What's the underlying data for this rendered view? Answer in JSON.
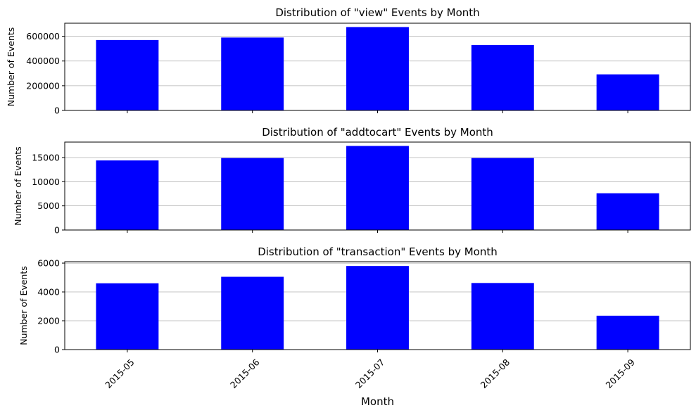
{
  "chart_data": [
    {
      "type": "bar",
      "title": "Distribution of \"view\" Events by Month",
      "ylabel": "Number of Events",
      "xlabel": "",
      "categories": [
        "2015-05",
        "2015-06",
        "2015-07",
        "2015-08",
        "2015-09"
      ],
      "values": [
        570000,
        590000,
        675000,
        530000,
        292000
      ],
      "ylim": [
        0,
        706000
      ],
      "yticks": [
        0,
        200000,
        400000,
        600000
      ],
      "grid": "y",
      "bar_color": "#0000ff",
      "show_xtick_labels": false
    },
    {
      "type": "bar",
      "title": "Distribution of \"addtocart\" Events by Month",
      "ylabel": "Number of Events",
      "xlabel": "",
      "categories": [
        "2015-05",
        "2015-06",
        "2015-07",
        "2015-08",
        "2015-09"
      ],
      "values": [
        14400,
        14900,
        17400,
        14900,
        7600
      ],
      "ylim": [
        0,
        18200
      ],
      "yticks": [
        0,
        5000,
        10000,
        15000
      ],
      "grid": "y",
      "bar_color": "#0000ff",
      "show_xtick_labels": false
    },
    {
      "type": "bar",
      "title": "Distribution of \"transaction\" Events by Month",
      "ylabel": "Number of Events",
      "xlabel": "Month",
      "categories": [
        "2015-05",
        "2015-06",
        "2015-07",
        "2015-08",
        "2015-09"
      ],
      "values": [
        4600,
        5050,
        5800,
        4620,
        2350
      ],
      "ylim": [
        0,
        6100
      ],
      "yticks": [
        0,
        2000,
        4000,
        6000
      ],
      "grid": "y",
      "bar_color": "#0000ff",
      "show_xtick_labels": true
    }
  ]
}
